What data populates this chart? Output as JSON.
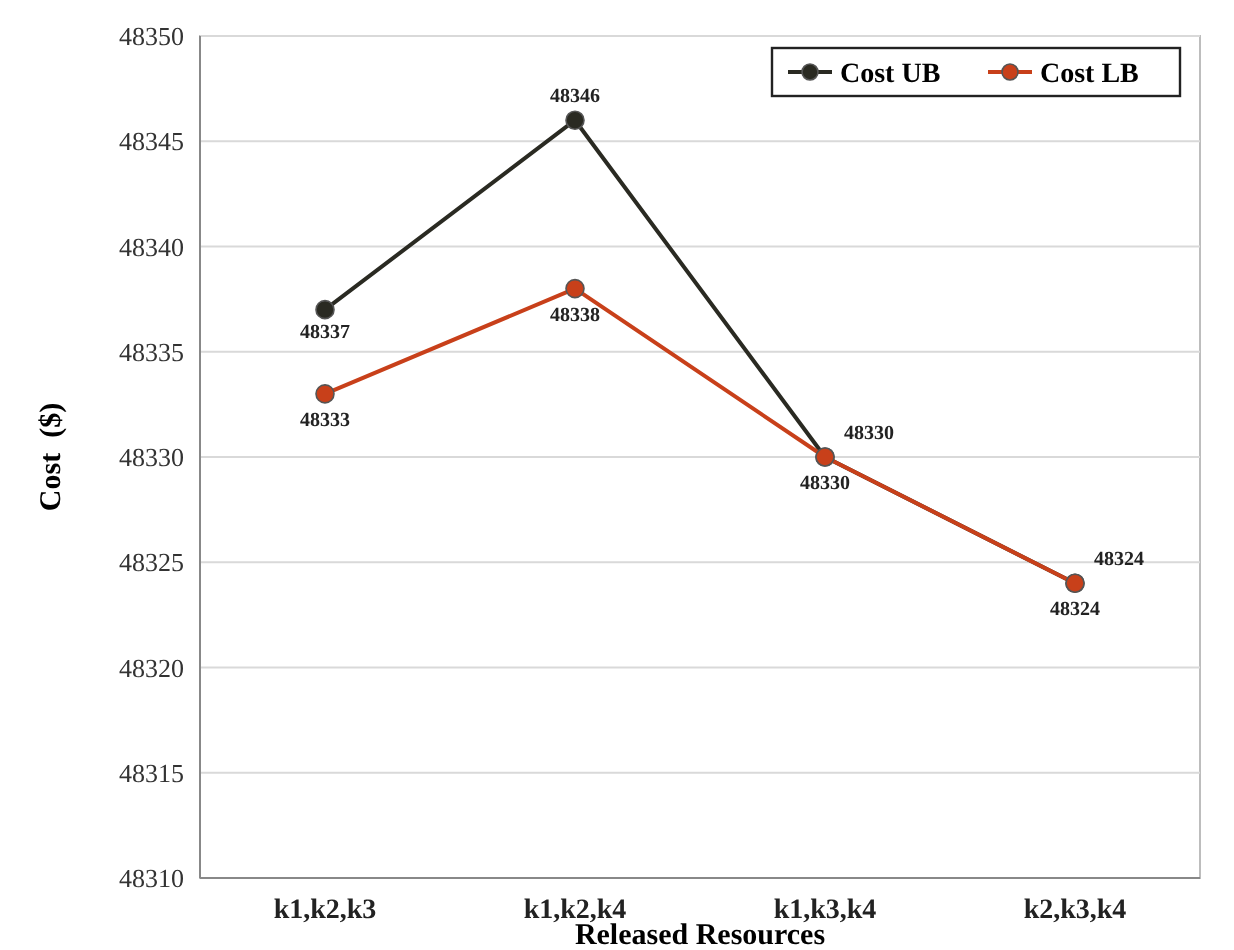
{
  "chart_data": {
    "type": "line",
    "xlabel": "Released Resources",
    "ylabel": "Cost  ($)",
    "categories": [
      "k1,k2,k3",
      "k1,k2,k4",
      "k1,k3,k4",
      "k2,k3,k4"
    ],
    "series": [
      {
        "name": "Cost UB",
        "color": "#2a2a22",
        "values": [
          48337,
          48346,
          48330,
          48324
        ]
      },
      {
        "name": "Cost LB",
        "color": "#c8401a",
        "values": [
          48333,
          48338,
          48330,
          48324
        ]
      }
    ],
    "ylim": [
      48310,
      48350
    ],
    "yticks": [
      48310,
      48315,
      48320,
      48325,
      48330,
      48335,
      48340,
      48345,
      48350
    ],
    "grid": "y",
    "legend": "top right",
    "marker": "circle",
    "data_labels": true
  }
}
